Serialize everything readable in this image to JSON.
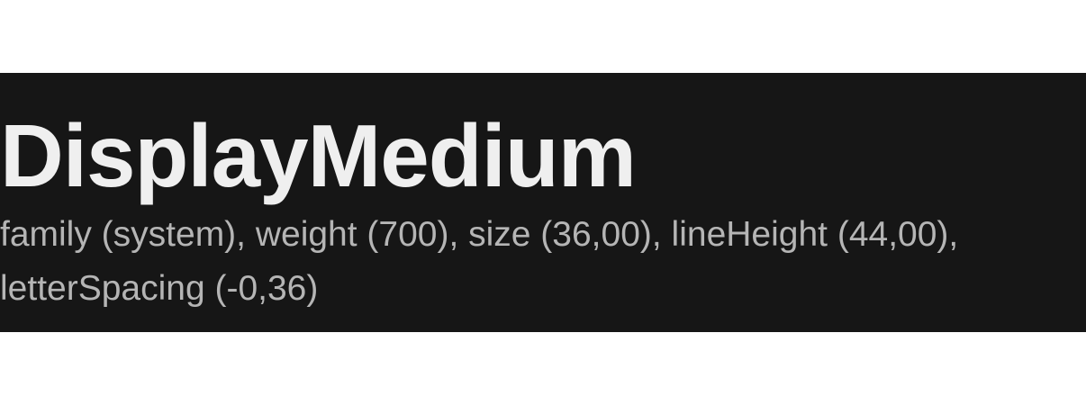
{
  "specimen": {
    "title": "DisplayMedium",
    "meta": "family (system), weight (700), size (36,00), lineHeight (44,00), letterSpacing (-0,36)"
  },
  "colors": {
    "page_background": "#ffffff",
    "panel_background": "#161616",
    "title_text": "#efefef",
    "meta_text": "#b5b5b5"
  }
}
